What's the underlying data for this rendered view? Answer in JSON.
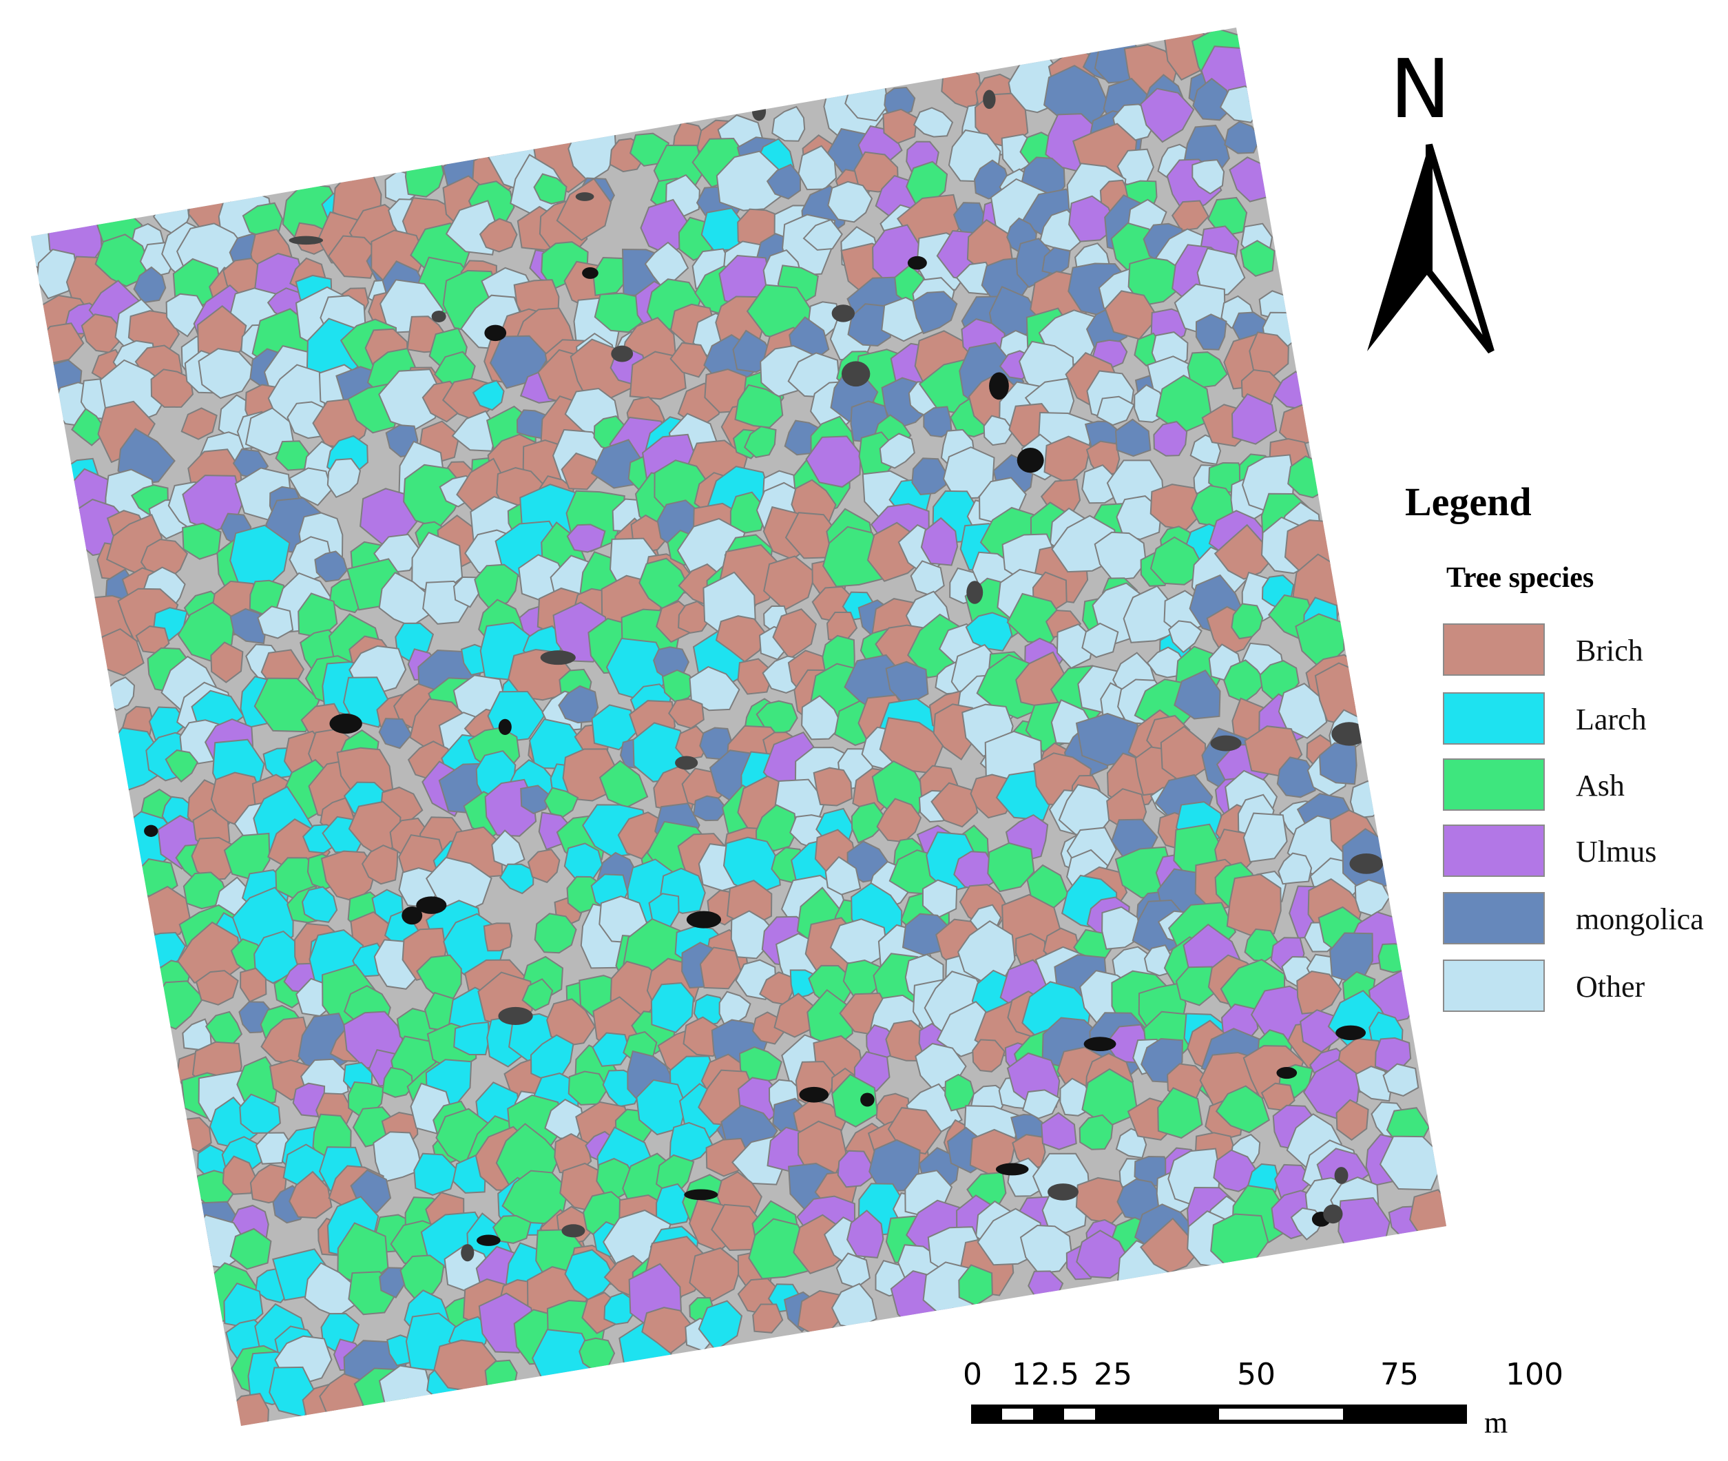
{
  "north_label": "N",
  "legend": {
    "title": "Legend",
    "subtitle": "Tree species",
    "items": [
      {
        "label": "Brich",
        "color": "#c98c80"
      },
      {
        "label": "Larch",
        "color": "#1ee2f0"
      },
      {
        "label": "Ash",
        "color": "#3ee67e"
      },
      {
        "label": "Ulmus",
        "color": "#b277e6"
      },
      {
        "label": "mongolica",
        "color": "#6688bb"
      },
      {
        "label": "Other",
        "color": "#bfe3f2"
      }
    ]
  },
  "scale_bar": {
    "ticks": [
      "0",
      "12.5",
      "25",
      "50",
      "75",
      "100"
    ],
    "tick_values": [
      0,
      12.5,
      25,
      50,
      75,
      100
    ],
    "unit": "m"
  }
}
